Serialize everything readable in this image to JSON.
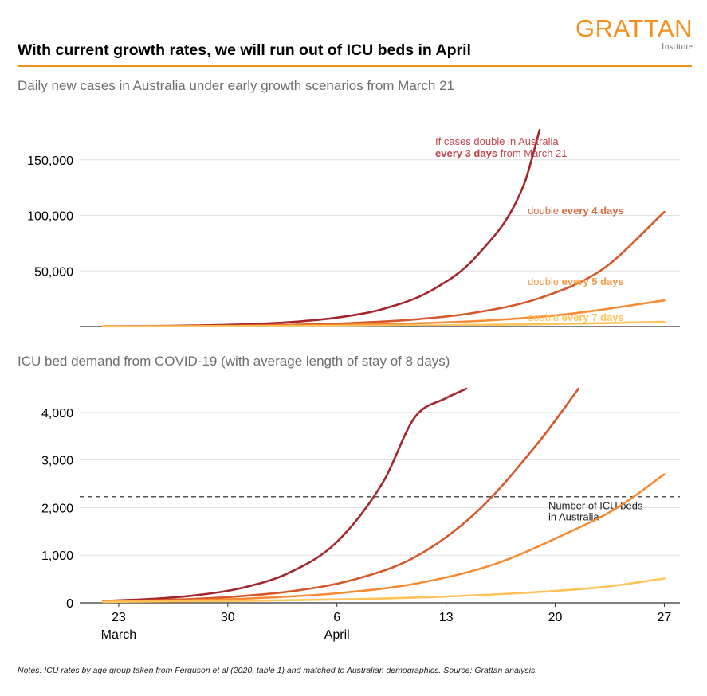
{
  "header": {
    "title": "With current growth rates, we will run out of ICU beds in April",
    "logo_word": "GRATTAN",
    "logo_sub": "Institute"
  },
  "notes": "Notes: ICU rates by age group taken from Ferguson et al (2020, table 1) and matched to Australian demographics. Source: Grattan analysis.",
  "colors": {
    "double_3": "#A4262C",
    "double_4": "#D4582A",
    "double_5": "#F68B33",
    "double_7": "#FFC35A",
    "label_3": "#C0474D",
    "label_4": "#D9683C",
    "label_5": "#F29A46",
    "label_7": "#FFC35A",
    "grid": "#e0e0e0",
    "axis": "#333333",
    "accent": "#F3901D"
  },
  "chart_data": [
    {
      "type": "line",
      "title": "Daily new cases in Australia under early growth scenarios from March 21",
      "x_unit": "days since March 21",
      "xlim": [
        -0.5,
        38
      ],
      "ylim": [
        0,
        190000
      ],
      "yticks": [
        50000,
        100000,
        150000
      ],
      "ytick_labels": [
        "50,000",
        "100,000",
        "150,000"
      ],
      "series": [
        {
          "name": "If cases double in Australia every 3 days from March 21",
          "doubling_days": 3,
          "x": [
            1,
            4,
            7,
            10,
            13,
            16,
            19,
            22,
            25,
            28,
            29
          ],
          "y": [
            250,
            500,
            1000,
            2000,
            4000,
            8000,
            16000,
            32000,
            64000,
            128000,
            177000
          ]
        },
        {
          "name": "double every 4 days",
          "doubling_days": 4,
          "x": [
            1,
            5,
            9,
            13,
            17,
            21,
            25,
            29,
            33,
            37
          ],
          "y": [
            200,
            400,
            800,
            1600,
            3200,
            6400,
            12800,
            25600,
            51200,
            103000
          ]
        },
        {
          "name": "double every 5 days",
          "doubling_days": 5,
          "x": [
            1,
            6,
            11,
            16,
            21,
            26,
            31,
            37
          ],
          "y": [
            180,
            360,
            720,
            1440,
            2880,
            5760,
            11520,
            23500
          ]
        },
        {
          "name": "double every 7 days",
          "doubling_days": 7,
          "x": [
            1,
            8,
            15,
            22,
            29,
            37
          ],
          "y": [
            130,
            260,
            520,
            1040,
            2080,
            4200
          ]
        }
      ],
      "annotations": [
        {
          "line1": "If cases double in Australia",
          "line2_bold": "every 3 days",
          "line2_rest": " from March 21"
        },
        {
          "prefix": "double ",
          "bold": "every 4 days"
        },
        {
          "prefix": "double ",
          "bold": "every 5 days"
        },
        {
          "prefix": "double ",
          "bold": "every 7 days"
        }
      ]
    },
    {
      "type": "line",
      "title": "ICU bed demand from COVID-19 (with average length of stay of 8 days)",
      "x_unit": "days since March 21",
      "xlim": [
        -0.5,
        38
      ],
      "ylim": [
        0,
        4600
      ],
      "yticks": [
        0,
        1000,
        2000,
        3000,
        4000
      ],
      "ytick_labels": [
        "0",
        "1,000",
        "2,000",
        "3,000",
        "4,000"
      ],
      "xticks": [
        2,
        9,
        16,
        23,
        30,
        37
      ],
      "xtick_labels": [
        "23",
        "30",
        "6",
        "13",
        "20",
        "27"
      ],
      "month_labels": [
        {
          "x": 2,
          "label": "March"
        },
        {
          "x": 16,
          "label": "April"
        }
      ],
      "reference_line": {
        "y": 2229,
        "label_line1": "Number of ICU beds",
        "label_line2": "in Australia"
      },
      "series": [
        {
          "name": "double every 3 days",
          "x": [
            1,
            4,
            7,
            10,
            13,
            16,
            19,
            21,
            23,
            24.3
          ],
          "y": [
            40,
            80,
            160,
            320,
            640,
            1280,
            2560,
            3900,
            4300,
            4500
          ]
        },
        {
          "name": "double every 4 days",
          "x": [
            1,
            5,
            9,
            13,
            17,
            21,
            25,
            29,
            31.5
          ],
          "y": [
            30,
            60,
            120,
            240,
            480,
            960,
            1920,
            3400,
            4500
          ]
        },
        {
          "name": "double every 5 days",
          "x": [
            1,
            6,
            11,
            16,
            21,
            26,
            31,
            34,
            37
          ],
          "y": [
            25,
            50,
            100,
            200,
            400,
            800,
            1500,
            2000,
            2700
          ]
        },
        {
          "name": "double every 7 days",
          "x": [
            1,
            8,
            15,
            22,
            29,
            33,
            37
          ],
          "y": [
            20,
            35,
            65,
            120,
            230,
            330,
            510
          ]
        }
      ]
    }
  ]
}
